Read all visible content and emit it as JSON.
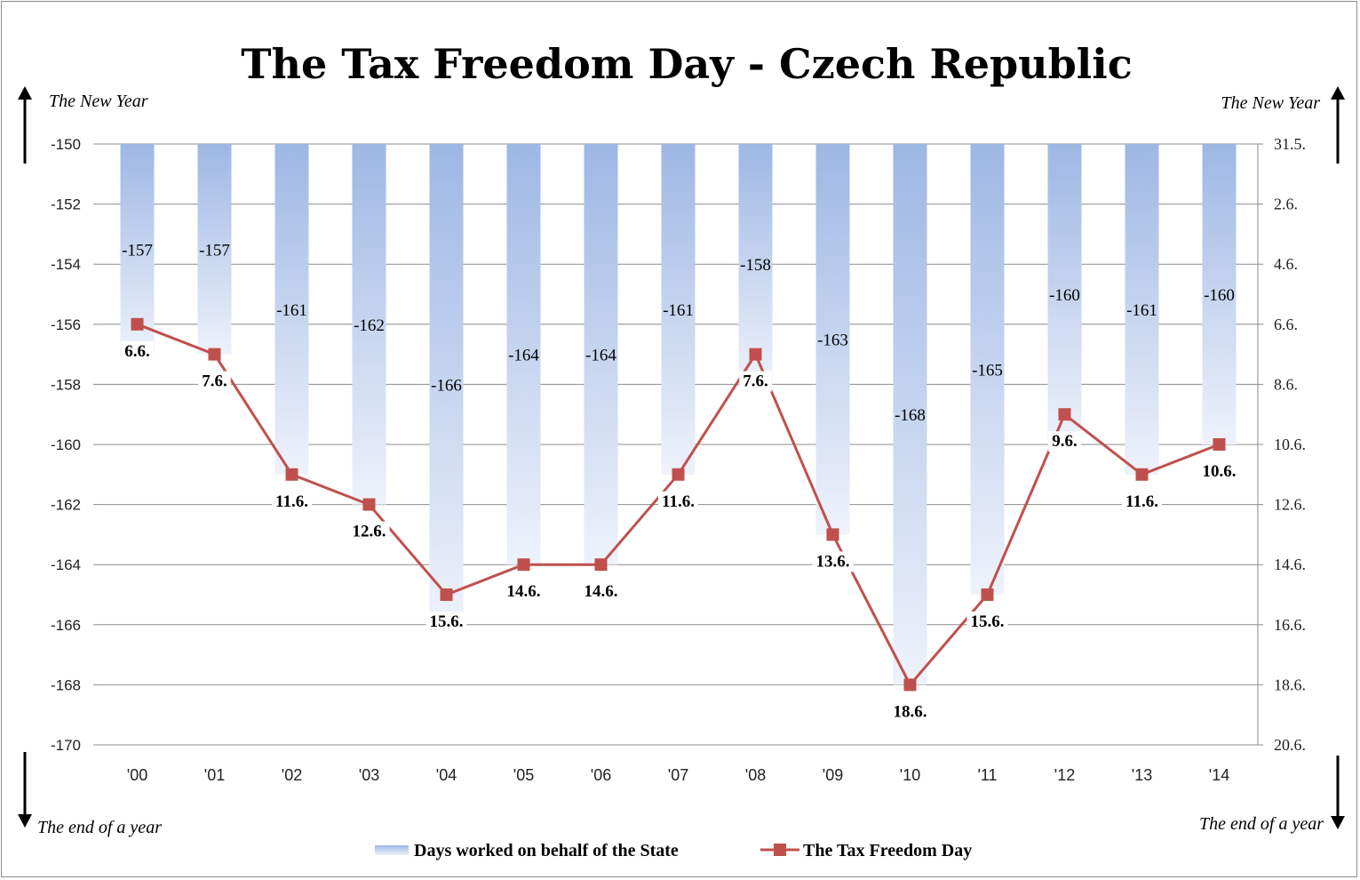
{
  "chart_data": {
    "type": "bar",
    "title": "The Tax Freedom Day  - Czech Republic",
    "categories": [
      "'00",
      "'01",
      "'02",
      "'03",
      "'04",
      "'05",
      "'06",
      "'07",
      "'08",
      "'09",
      "'10",
      "'11",
      "'12",
      "'13",
      "'14"
    ],
    "series": [
      {
        "name": "Days worked on behalf of the State",
        "type": "bar",
        "values": [
          -157,
          -157,
          -161,
          -162,
          -166,
          -164,
          -164,
          -161,
          -158,
          -163,
          -168,
          -165,
          -160,
          -161,
          -160
        ],
        "labels": [
          "-157",
          "-157",
          "-161",
          "-162",
          "-166",
          "-164",
          "-164",
          "-161",
          "-158",
          "-163",
          "-168",
          "-165",
          "-160",
          "-161",
          "-160"
        ]
      },
      {
        "name": "The Tax Freedom Day",
        "type": "line",
        "values": [
          -156,
          -157,
          -161,
          -162,
          -165,
          -164,
          -164,
          -161,
          -157,
          -163,
          -168,
          -165,
          -159,
          -161,
          -160
        ],
        "labels": [
          "6.6.",
          "7.6.",
          "11.6.",
          "12.6.",
          "15.6.",
          "14.6.",
          "14.6.",
          "11.6.",
          "7.6.",
          "13.6.",
          "18.6.",
          "15.6.",
          "9.6.",
          "11.6.",
          "10.6."
        ]
      }
    ],
    "y_left": {
      "min": -170,
      "max": -150,
      "ticks": [
        "-150",
        "-152",
        "-154",
        "-156",
        "-158",
        "-160",
        "-162",
        "-164",
        "-166",
        "-168",
        "-170"
      ]
    },
    "y_right": {
      "ticks": [
        "31.5.",
        "2.6.",
        "4.6.",
        "6.6.",
        "8.6.",
        "10.6.",
        "12.6.",
        "14.6.",
        "16.6.",
        "18.6.",
        "20.6."
      ]
    },
    "grid": true,
    "legend_position": "bottom",
    "colors": {
      "bar_top": "#9db7e4",
      "bar_bottom": "#eef2fb",
      "line": "#c0504d",
      "grid": "#8c8c8c"
    }
  },
  "annotations": {
    "top_left": "The New Year",
    "top_right": "The New Year",
    "bottom_left": "The end of a year",
    "bottom_right": "The end of a year"
  }
}
